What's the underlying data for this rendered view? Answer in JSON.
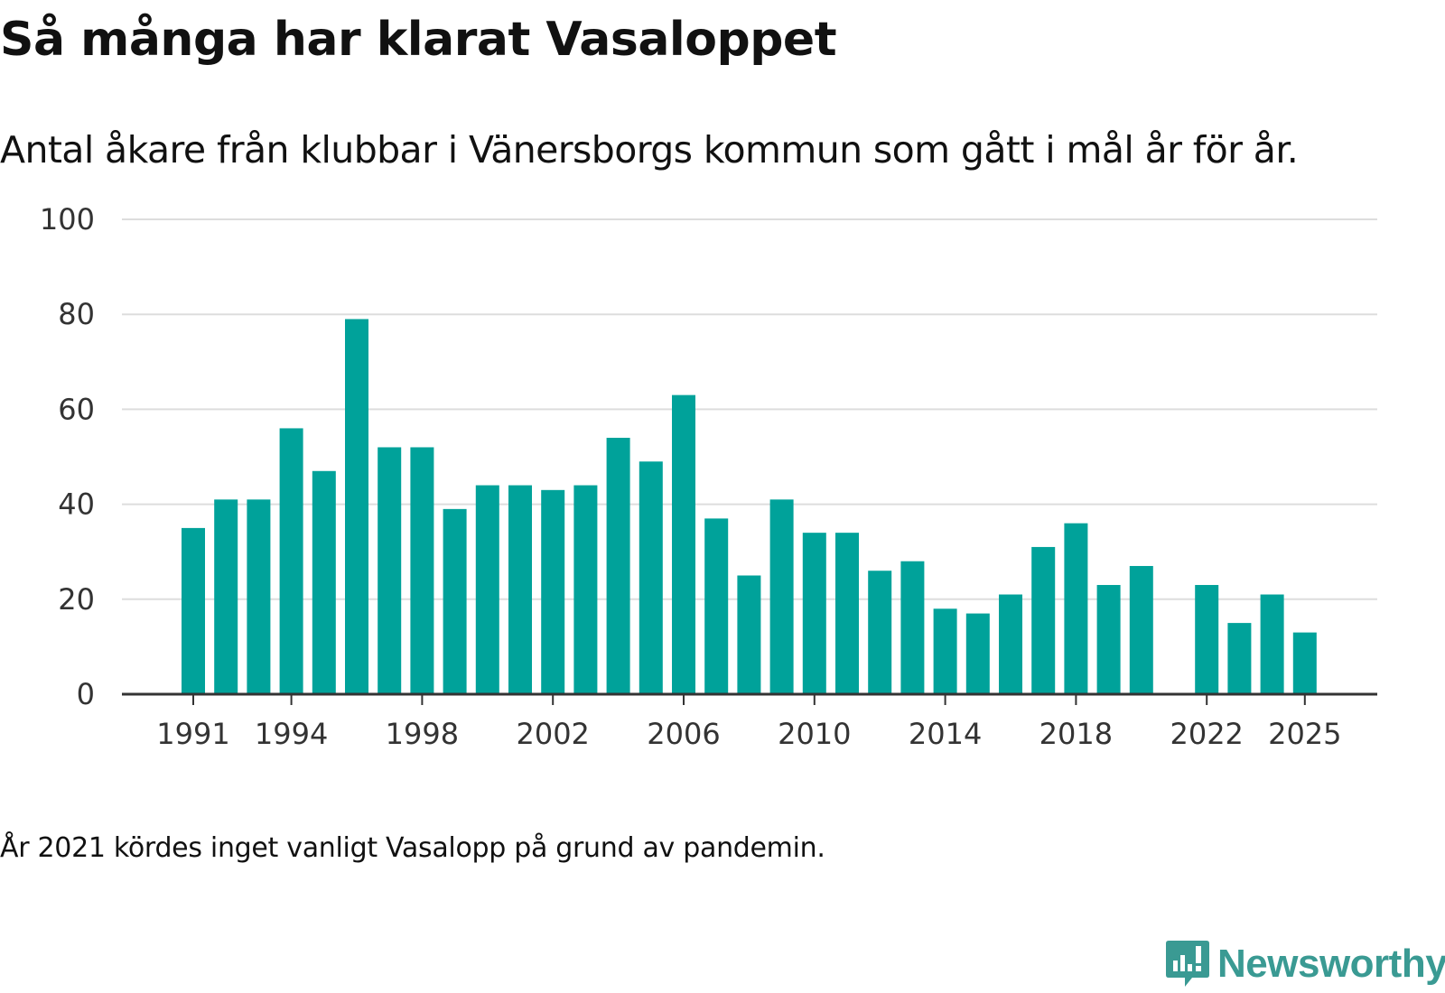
{
  "chart_data": {
    "type": "bar",
    "title": "Så många har klarat Vasaloppet",
    "subtitle": "Antal åkare från klubbar i Vänersborgs kommun som gått i mål år för år.",
    "xlabel": "",
    "ylabel": "",
    "ylim": [
      0,
      100
    ],
    "yticks": [
      "0",
      "20",
      "40",
      "60",
      "80",
      "100"
    ],
    "xticks": [
      "1991",
      "1994",
      "1998",
      "2002",
      "2006",
      "2010",
      "2014",
      "2018",
      "2022",
      "2025"
    ],
    "categories": [
      1991,
      1992,
      1993,
      1994,
      1995,
      1996,
      1997,
      1998,
      1999,
      2000,
      2001,
      2002,
      2003,
      2004,
      2005,
      2006,
      2007,
      2008,
      2009,
      2010,
      2011,
      2012,
      2013,
      2014,
      2015,
      2016,
      2017,
      2018,
      2019,
      2020,
      2021,
      2022,
      2023,
      2024,
      2025
    ],
    "values": [
      35,
      41,
      41,
      56,
      47,
      79,
      52,
      52,
      39,
      44,
      44,
      43,
      44,
      54,
      49,
      63,
      37,
      25,
      41,
      34,
      34,
      26,
      28,
      18,
      17,
      21,
      31,
      36,
      23,
      27,
      null,
      23,
      15,
      21,
      13
    ],
    "grid": true,
    "bar_color": "#00a29a",
    "note": "År 2021 kördes inget vanligt Vasalopp på grund av pandemin."
  },
  "brand": {
    "name": "Newsworthy",
    "logo_icon": "newsworthy-logo-icon",
    "color": "#3a9a93"
  }
}
